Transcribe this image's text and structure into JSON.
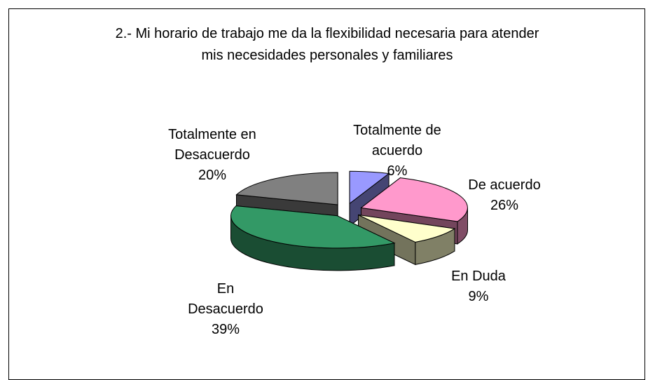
{
  "chart_data": {
    "type": "pie3d",
    "title": "2.- Mi horario de trabajo me da la flexibilidad necesaria para atender mis necesidades personales y familiares",
    "categories": [
      "Totalmente de acuerdo",
      "De acuerdo",
      "En Duda",
      "En Desacuerdo",
      "Totalmente en Desacuerdo"
    ],
    "values": [
      6,
      26,
      9,
      39,
      20
    ],
    "value_labels": [
      "6%",
      "26%",
      "9%",
      "39%",
      "20%"
    ],
    "colors": [
      "#9999ff",
      "#ff99cc",
      "#ffffcc",
      "#339966",
      "#808080"
    ]
  }
}
